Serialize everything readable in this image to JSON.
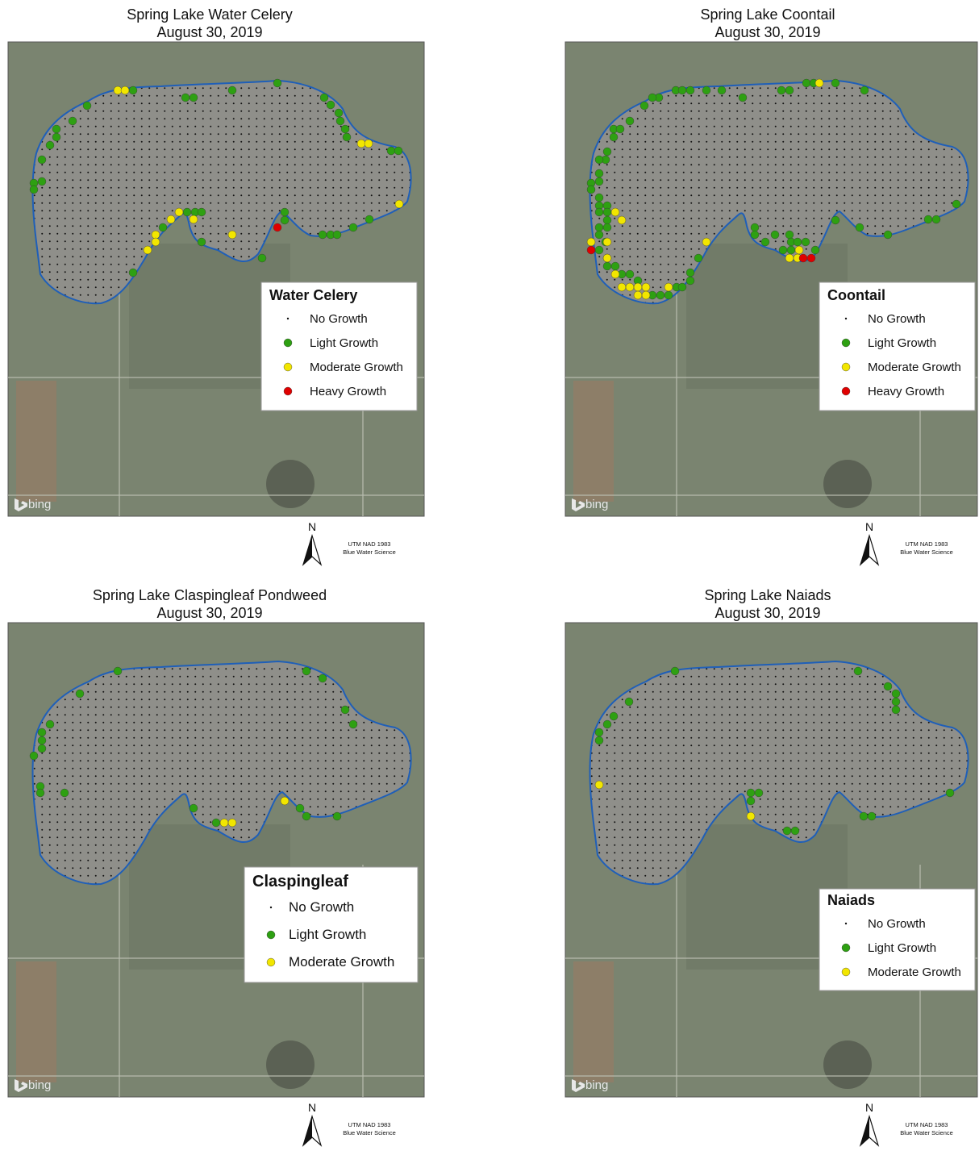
{
  "maps": [
    {
      "title": "Spring Lake Water Celery",
      "date": "August 30, 2019",
      "legend": {
        "title": "Water Celery",
        "items": [
          "No Growth",
          "Light Growth",
          "Moderate Growth",
          "Heavy Growth"
        ]
      },
      "logo": "bing",
      "north": "N",
      "credit": [
        "UTM NAD 1983",
        "Blue Water Science"
      ]
    },
    {
      "title": "Spring Lake Coontail",
      "date": "August 30, 2019",
      "legend": {
        "title": "Coontail",
        "items": [
          "No Growth",
          "Light Growth",
          "Moderate Growth",
          "Heavy Growth"
        ]
      },
      "logo": "bing",
      "north": "N",
      "credit": [
        "UTM NAD 1983",
        "Blue Water Science"
      ]
    },
    {
      "title": "Spring Lake Claspingleaf Pondweed",
      "date": "August 30, 2019",
      "legend": {
        "title": "Claspingleaf",
        "items": [
          "No Growth",
          "Light Growth",
          "Moderate Growth"
        ]
      },
      "logo": "bing",
      "north": "N",
      "credit": [
        "UTM NAD 1983",
        "Blue Water Science"
      ]
    },
    {
      "title": "Spring Lake Naiads",
      "date": "August 30, 2019",
      "legend": {
        "title": "Naiads",
        "items": [
          "No Growth",
          "Light Growth",
          "Moderate Growth"
        ]
      },
      "logo": "bing",
      "north": "N",
      "credit": [
        "UTM NAD 1983",
        "Blue Water Science"
      ]
    }
  ]
}
